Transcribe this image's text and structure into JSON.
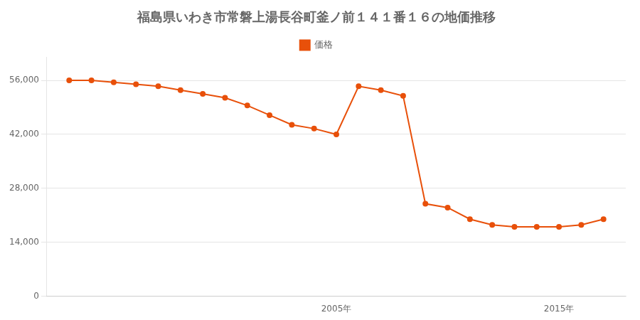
{
  "chart_data": {
    "type": "line",
    "title": "福島県いわき市常磐上湯長谷町釜ノ前１４１番１６の地価推移",
    "x": [
      1993,
      1994,
      1995,
      1996,
      1997,
      1998,
      1999,
      2000,
      2001,
      2002,
      2003,
      2004,
      2005,
      2006,
      2007,
      2008,
      2009,
      2010,
      2011,
      2012,
      2013,
      2014,
      2015,
      2016,
      2017
    ],
    "series": [
      {
        "name": "価格",
        "color": "#E8500A",
        "values": [
          56000,
          56000,
          55500,
          55000,
          54500,
          53500,
          52500,
          51500,
          49500,
          47000,
          44500,
          43500,
          42000,
          54500,
          53500,
          52000,
          24000,
          23000,
          20000,
          18500,
          18000,
          18000,
          18000,
          18500,
          20000
        ]
      }
    ],
    "xlim": [
      1992,
      2018
    ],
    "xticks": [
      {
        "value": 2005,
        "label": "2005年"
      },
      {
        "value": 2015,
        "label": "2015年"
      }
    ],
    "ylim": [
      0,
      62000
    ],
    "yticks": [
      0,
      {
        "value": 14000,
        "label": "14,000"
      },
      {
        "value": 28000,
        "label": "28,000"
      },
      {
        "value": 42000,
        "label": "42,000"
      },
      {
        "value": 56000,
        "label": "56,000"
      }
    ],
    "grid": "y",
    "legend": "top",
    "marker": "circle"
  }
}
